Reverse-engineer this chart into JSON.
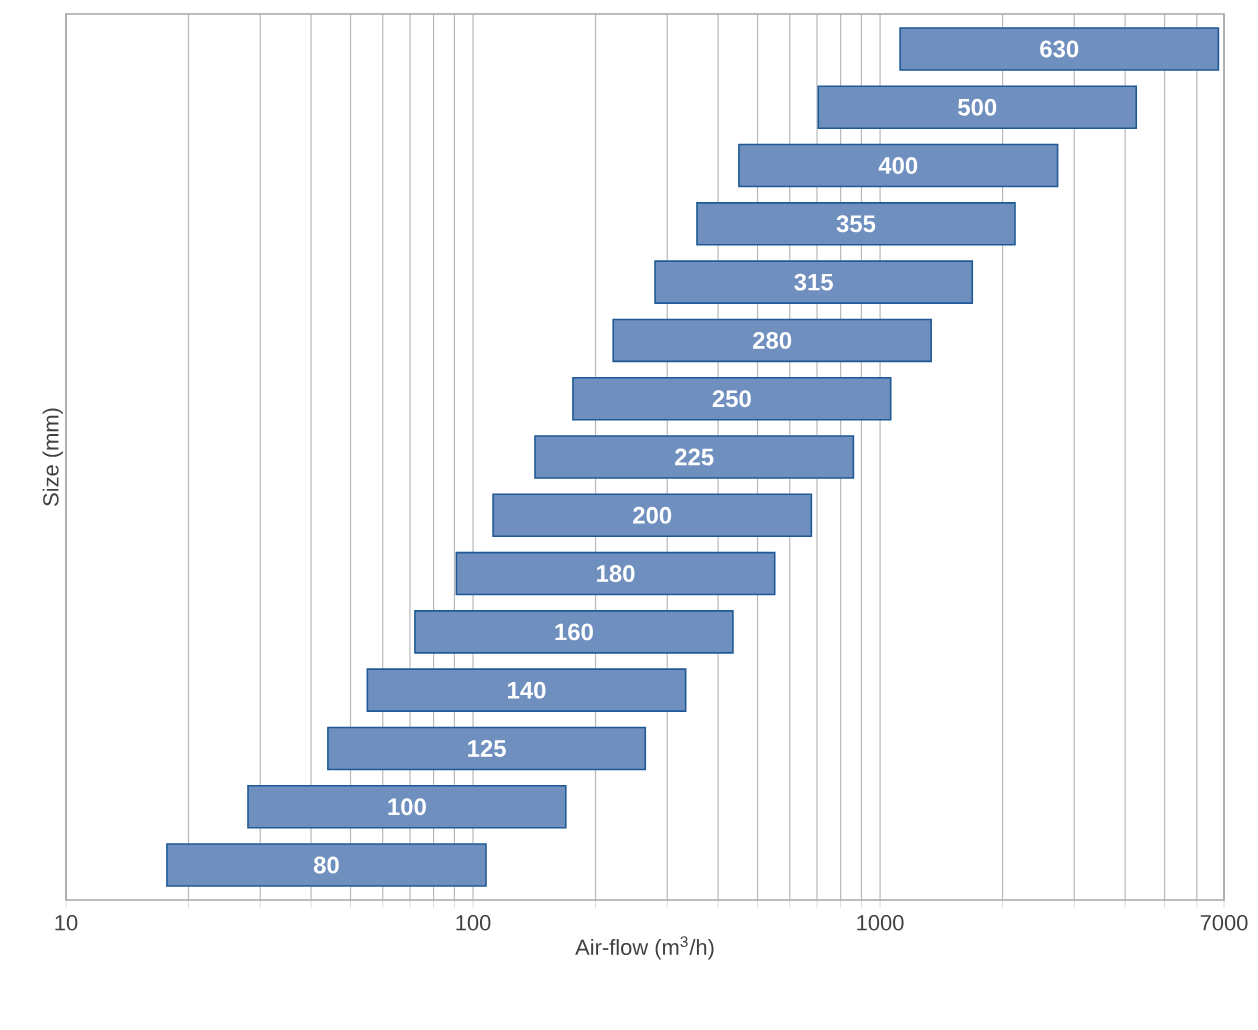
{
  "chart_data": {
    "type": "bar",
    "orientation": "horizontal",
    "log": "x",
    "grid": "x",
    "tick_labels": "x",
    "xlabel": "Air-flow (m$^{3}$/h)",
    "ylabel": "Size (mm)",
    "categories": [
      "630",
      "500",
      "400",
      "355",
      "315",
      "280",
      "250",
      "225",
      "200",
      "180",
      "160",
      "140",
      "125",
      "100",
      "80"
    ],
    "base": [
      1120,
      705,
      450,
      355,
      280,
      221,
      176,
      142,
      112,
      91,
      72,
      55,
      44,
      28,
      17.7
    ],
    "values": [
      5660,
      3555,
      2280,
      1790,
      1405,
      1114,
      886,
      718,
      566,
      460,
      363,
      278,
      221,
      141,
      89.9
    ],
    "color": "#6f8fbf",
    "xlim": [
      10,
      7000
    ],
    "xticks": [
      10,
      {
        "value": 20,
        "label": null
      },
      {
        "value": 30,
        "label": null
      },
      {
        "value": 40,
        "label": null
      },
      {
        "value": 50,
        "label": null
      },
      {
        "value": 60,
        "label": null
      },
      {
        "value": 70,
        "label": null
      },
      {
        "value": 80,
        "label": null
      },
      {
        "value": 90,
        "label": null
      },
      100,
      {
        "value": 200,
        "label": null
      },
      {
        "value": 300,
        "label": null
      },
      {
        "value": 400,
        "label": null
      },
      {
        "value": 500,
        "label": null
      },
      {
        "value": 600,
        "label": null
      },
      {
        "value": 700,
        "label": null
      },
      {
        "value": 800,
        "label": null
      },
      {
        "value": 900,
        "label": null
      },
      1000,
      {
        "value": 2000,
        "label": null
      },
      {
        "value": 3000,
        "label": null
      },
      {
        "value": 4000,
        "label": null
      },
      {
        "value": 5000,
        "label": null
      },
      {
        "value": 6000,
        "label": null
      },
      7000
    ]
  }
}
